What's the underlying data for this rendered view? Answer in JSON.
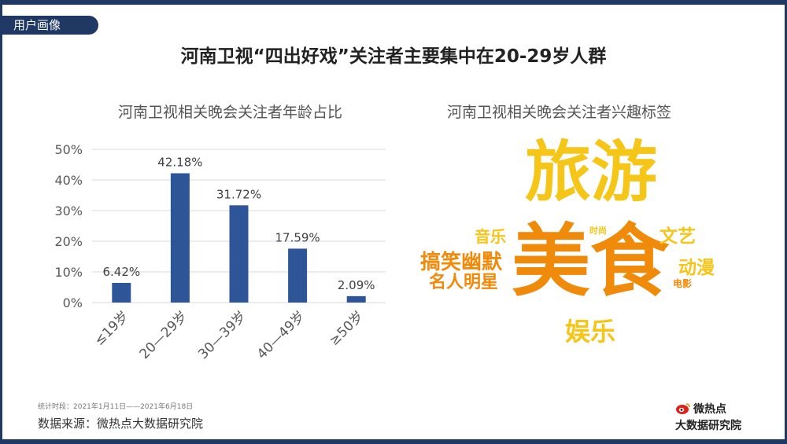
{
  "header": {
    "tag": "用户画像",
    "title": "河南卫视“四出好戏”关注者主要集中在20-29岁人群"
  },
  "left_panel": {
    "subtitle": "河南卫视相关晚会关注者年龄占比"
  },
  "right_panel": {
    "subtitle": "河南卫视相关晚会关注者兴趣标签"
  },
  "chart_data": {
    "type": "bar",
    "categories": [
      "≤19岁",
      "20—29岁",
      "30—39岁",
      "40—49岁",
      "≥50岁"
    ],
    "values": [
      6.42,
      42.18,
      31.72,
      17.59,
      2.09
    ],
    "value_labels": [
      "6.42%",
      "42.18%",
      "31.72%",
      "17.59%",
      "2.09%"
    ],
    "ylim": [
      0,
      50
    ],
    "yticks": [
      0,
      10,
      20,
      30,
      40,
      50
    ],
    "ytick_labels": [
      "0%",
      "10%",
      "20%",
      "30%",
      "40%",
      "50%"
    ],
    "bar_color": "#2e5597",
    "grid": true
  },
  "word_cloud": [
    {
      "text": "旅游",
      "color": "#f5c518"
    },
    {
      "text": "美食",
      "color": "#f08a0b"
    },
    {
      "text": "音乐",
      "color": "#f5c518"
    },
    {
      "text": "时尚",
      "color": "#f5c518"
    },
    {
      "text": "文艺",
      "color": "#f5c518"
    },
    {
      "text": "搞笑幽默",
      "color": "#f08a0b"
    },
    {
      "text": "动漫",
      "color": "#f5c518"
    },
    {
      "text": "名人明星",
      "color": "#f08a0b"
    },
    {
      "text": "电影",
      "color": "#f08a0b"
    },
    {
      "text": "娱乐",
      "color": "#f5c518"
    }
  ],
  "footer": {
    "period": "统计时段：2021年1月11日——2021年6月18日",
    "source": "数据来源：微热点大数据研究院",
    "brand_line1": "微热点",
    "brand_line2": "大数据研究院"
  }
}
